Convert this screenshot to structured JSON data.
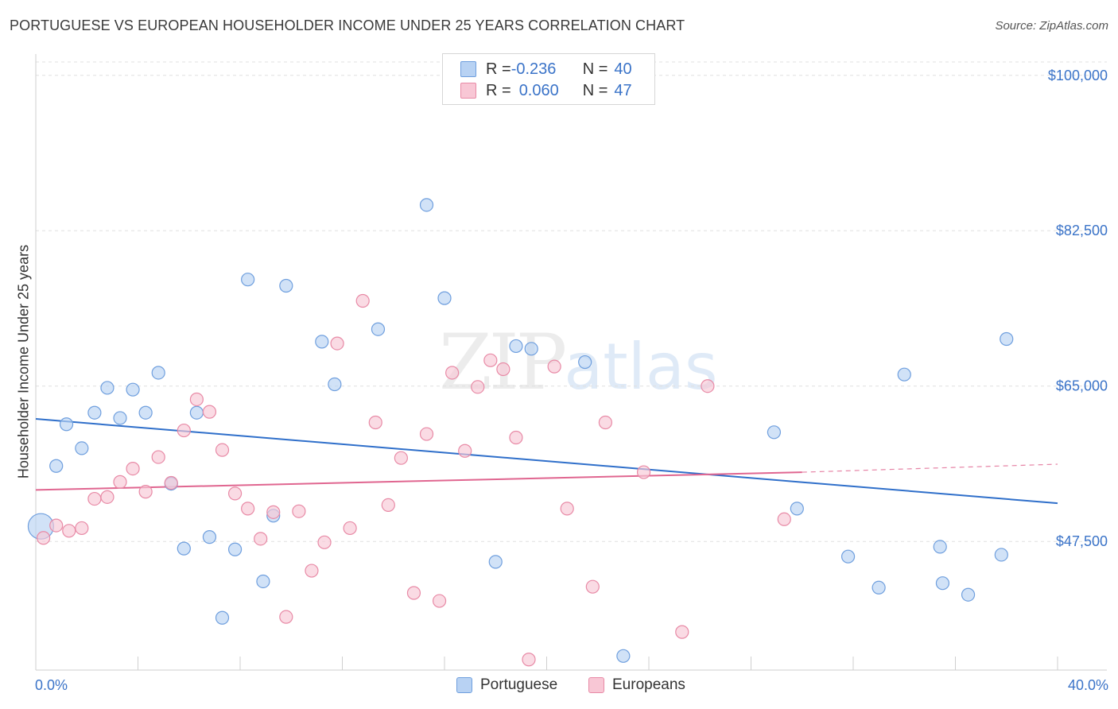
{
  "title": "PORTUGUESE VS EUROPEAN HOUSEHOLDER INCOME UNDER 25 YEARS CORRELATION CHART",
  "source": "Source: ZipAtlas.com",
  "watermark": {
    "zip": "ZIP",
    "atlas": "atlas"
  },
  "legend_top": [
    {
      "r_label": "R = ",
      "r_value": "-0.236",
      "n_label": "N = ",
      "n_value": "40"
    },
    {
      "r_label": "R = ",
      "r_value": "0.060",
      "n_label": "N = ",
      "n_value": "47"
    }
  ],
  "legend_bottom": [
    {
      "label": "Portuguese"
    },
    {
      "label": "Europeans"
    }
  ],
  "colors": {
    "portuguese_fill": "#b8d2f3",
    "portuguese_stroke": "#6f9fde",
    "portuguese_line": "#2f6fca",
    "europeans_fill": "#f8c7d5",
    "europeans_stroke": "#e88aa6",
    "europeans_line": "#e06690",
    "axis_text": "#3a73c8",
    "grid": "#e0e0e0"
  },
  "chart_data": {
    "type": "scatter",
    "title": "PORTUGUESE VS EUROPEAN HOUSEHOLDER INCOME UNDER 25 YEARS CORRELATION CHART",
    "xlabel": "",
    "ylabel": "Householder Income Under 25 years",
    "x_unit": "percent",
    "xlim": [
      0.0,
      40.0
    ],
    "ylim": [
      34000,
      101500
    ],
    "x_tick_labels": [
      "0.0%",
      "40.0%"
    ],
    "y_ticks": [
      47500,
      65000,
      82500,
      100000
    ],
    "y_tick_labels": [
      "$47,500",
      "$65,000",
      "$82,500",
      "$100,000"
    ],
    "grid": true,
    "legend_position": "top-center",
    "series": [
      {
        "name": "Portuguese",
        "r": -0.236,
        "n": 40,
        "trend": {
          "x0": 0.0,
          "y0": 61300,
          "x1": 40.0,
          "y1": 51800
        },
        "points": [
          [
            0.2,
            49200,
            "big"
          ],
          [
            0.8,
            56000
          ],
          [
            1.2,
            60700
          ],
          [
            1.8,
            58000
          ],
          [
            2.3,
            62000
          ],
          [
            2.8,
            64800
          ],
          [
            3.3,
            61400
          ],
          [
            3.8,
            64600
          ],
          [
            4.3,
            62000
          ],
          [
            4.8,
            66500
          ],
          [
            5.3,
            54000
          ],
          [
            5.8,
            46700
          ],
          [
            6.3,
            62000
          ],
          [
            6.8,
            48000
          ],
          [
            7.3,
            38900
          ],
          [
            7.8,
            46600
          ],
          [
            8.3,
            77000
          ],
          [
            8.9,
            43000
          ],
          [
            9.3,
            50400
          ],
          [
            9.8,
            76300
          ],
          [
            11.2,
            70000
          ],
          [
            11.7,
            65200
          ],
          [
            13.4,
            71400
          ],
          [
            15.3,
            85400
          ],
          [
            16.0,
            74900
          ],
          [
            18.0,
            45200
          ],
          [
            18.8,
            69500
          ],
          [
            19.4,
            69200
          ],
          [
            21.5,
            67700
          ],
          [
            23.0,
            34600
          ],
          [
            28.9,
            59800
          ],
          [
            29.8,
            51200
          ],
          [
            31.8,
            45800
          ],
          [
            33.0,
            42300
          ],
          [
            34.0,
            66300
          ],
          [
            35.4,
            46900
          ],
          [
            35.5,
            42800
          ],
          [
            36.5,
            41500
          ],
          [
            37.8,
            46000
          ],
          [
            38.0,
            70300
          ]
        ]
      },
      {
        "name": "Europeans",
        "r": 0.06,
        "n": 47,
        "trend": {
          "x0": 0.0,
          "y0": 53300,
          "x1": 30.0,
          "y1": 55300,
          "dash_x1": 40.0,
          "dash_y1": 56200
        },
        "points": [
          [
            0.3,
            47900
          ],
          [
            0.8,
            49300
          ],
          [
            1.3,
            48700
          ],
          [
            1.8,
            49000
          ],
          [
            2.3,
            52300
          ],
          [
            2.8,
            52500
          ],
          [
            3.3,
            54200
          ],
          [
            3.8,
            55700
          ],
          [
            4.3,
            53100
          ],
          [
            4.8,
            57000
          ],
          [
            5.3,
            54100
          ],
          [
            5.8,
            60000
          ],
          [
            6.3,
            63500
          ],
          [
            6.8,
            62100
          ],
          [
            7.3,
            57800
          ],
          [
            7.8,
            52900
          ],
          [
            8.3,
            51200
          ],
          [
            8.8,
            47800
          ],
          [
            9.3,
            50800
          ],
          [
            9.8,
            39000
          ],
          [
            10.3,
            50900
          ],
          [
            10.8,
            44200
          ],
          [
            11.3,
            47400
          ],
          [
            11.8,
            69800
          ],
          [
            12.3,
            49000
          ],
          [
            12.8,
            74600
          ],
          [
            13.3,
            60900
          ],
          [
            13.8,
            51600
          ],
          [
            14.3,
            56900
          ],
          [
            14.8,
            41700
          ],
          [
            15.3,
            59600
          ],
          [
            15.8,
            40800
          ],
          [
            16.3,
            66500
          ],
          [
            16.8,
            57700
          ],
          [
            17.3,
            64900
          ],
          [
            17.8,
            67900
          ],
          [
            18.3,
            66900
          ],
          [
            18.8,
            59200
          ],
          [
            19.3,
            34200
          ],
          [
            20.3,
            67200
          ],
          [
            20.8,
            51200
          ],
          [
            21.8,
            42400
          ],
          [
            22.3,
            60900
          ],
          [
            23.8,
            55300
          ],
          [
            25.3,
            37300
          ],
          [
            26.3,
            65000
          ],
          [
            29.3,
            50000
          ]
        ]
      }
    ]
  }
}
